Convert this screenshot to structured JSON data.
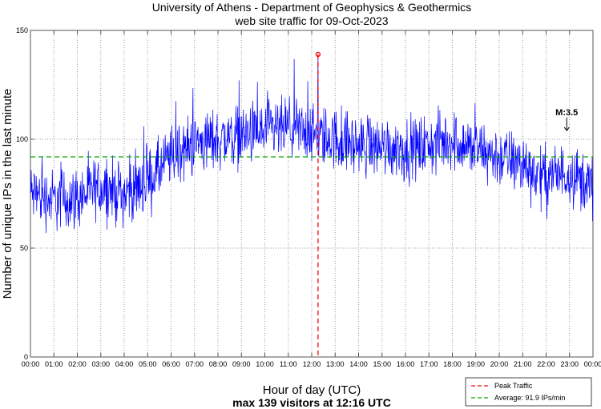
{
  "chart_data": {
    "type": "line",
    "title": "University of Athens - Department of Geophysics & Geothermics",
    "subtitle": "web site traffic for 09-Oct-2023",
    "xlabel": "Hour of day (UTC)",
    "xlabel2": "max 139 visitors at 12:16 UTC",
    "ylabel": "Number of unique IPs in the last minute",
    "ylim": [
      0,
      150
    ],
    "xlim": [
      0,
      24
    ],
    "yticks": [
      "0",
      "50",
      "100",
      "150"
    ],
    "xticks": [
      "00:00",
      "01:00",
      "02:00",
      "03:00",
      "04:00",
      "05:00",
      "06:00",
      "07:00",
      "08:00",
      "09:00",
      "10:00",
      "11:00",
      "12:00",
      "13:00",
      "14:00",
      "15:00",
      "16:00",
      "17:00",
      "18:00",
      "19:00",
      "20:00",
      "21:00",
      "22:00",
      "23:00",
      "00:00"
    ],
    "grid": true,
    "series": [
      {
        "name": "traffic",
        "color": "#0000ff",
        "hourly_mean": [
          75,
          72,
          73,
          78,
          75,
          80,
          92,
          98,
          100,
          102,
          103,
          105,
          102,
          100,
          97,
          97,
          95,
          97,
          100,
          95,
          92,
          88,
          82,
          85,
          78
        ]
      }
    ],
    "peak": {
      "value": 139,
      "hour": 12.27,
      "color": "#ff0000"
    },
    "average": {
      "value": 91.9,
      "color": "#00aa00"
    },
    "annotation": {
      "text": "M:3.5",
      "hour": 22.88
    },
    "legend": {
      "placement": "bottom-right",
      "entries": [
        "Peak Traffic",
        "Average: 91.9 IPs/min"
      ]
    }
  }
}
